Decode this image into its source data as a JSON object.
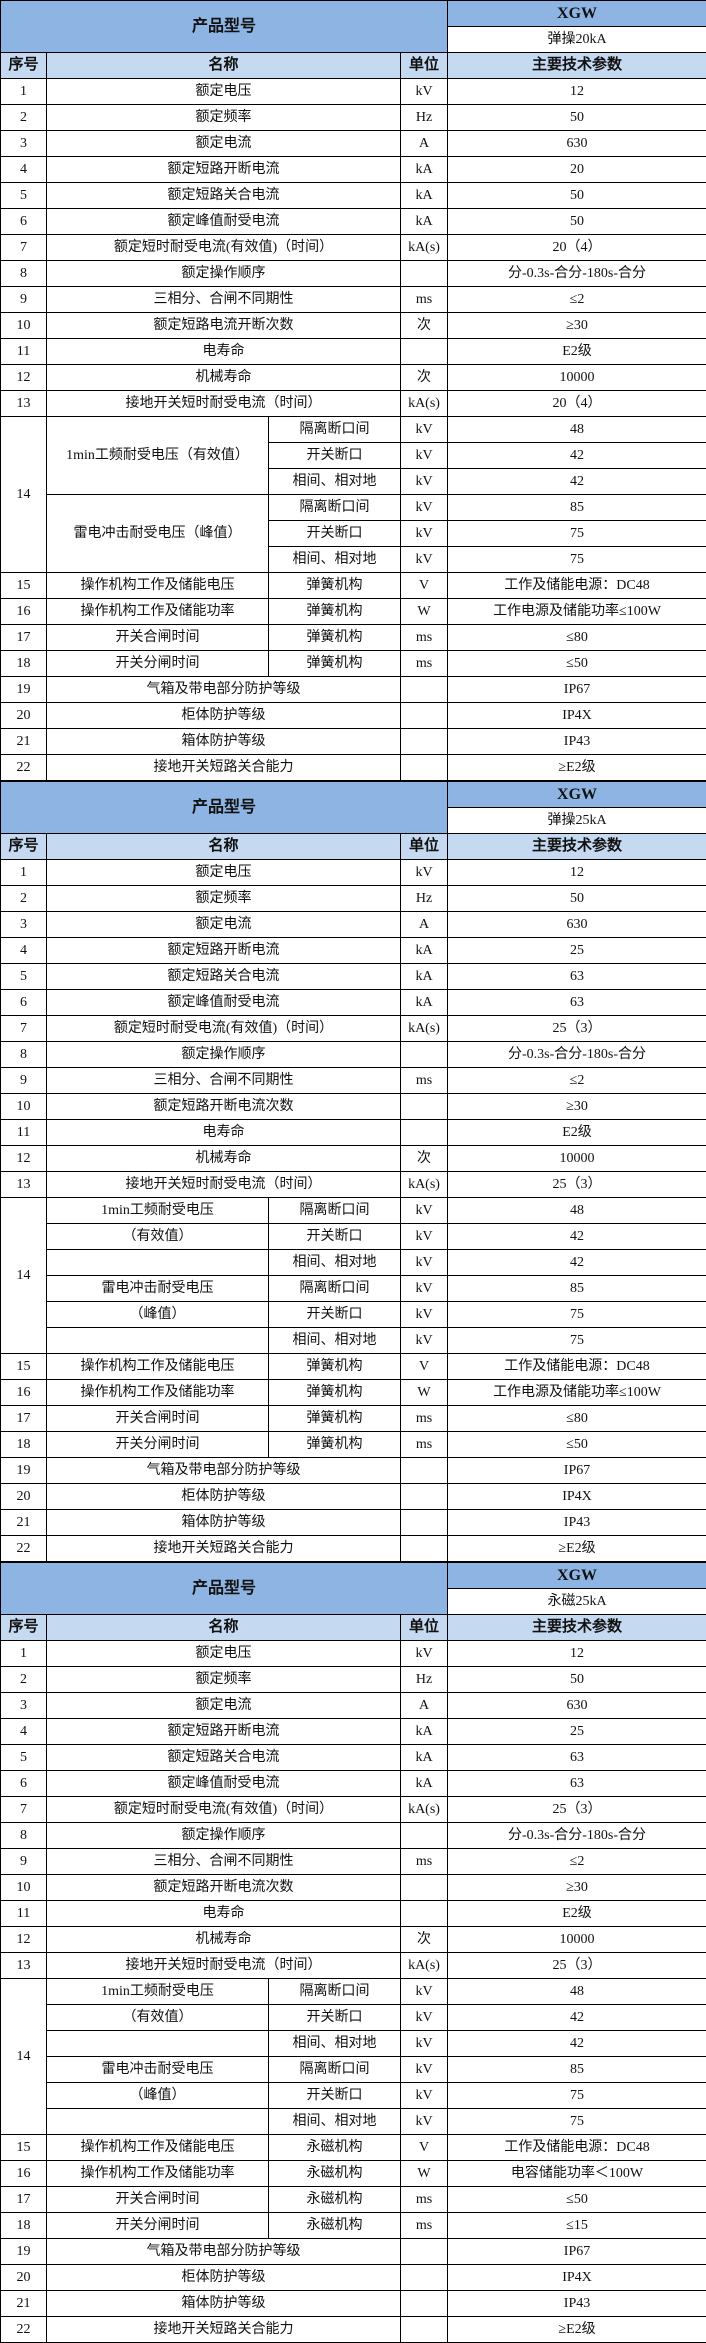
{
  "colors": {
    "header": "#8db4e2",
    "column_header": "#c5d9f1"
  },
  "tables": [
    {
      "model_label": "产品型号",
      "model": "XGW",
      "variant": "弹操20kA",
      "columns": {
        "no": "序号",
        "name": "名称",
        "unit": "单位",
        "value": "主要技术参数"
      },
      "rows": [
        {
          "no": "1",
          "name": "额定电压",
          "unit": "kV",
          "value": "12"
        },
        {
          "no": "2",
          "name": "额定频率",
          "unit": "Hz",
          "value": "50"
        },
        {
          "no": "3",
          "name": "额定电流",
          "unit": "A",
          "value": "630"
        },
        {
          "no": "4",
          "name": "额定短路开断电流",
          "unit": "kA",
          "value": "20"
        },
        {
          "no": "5",
          "name": "额定短路关合电流",
          "unit": "kA",
          "value": "50"
        },
        {
          "no": "6",
          "name": "额定峰值耐受电流",
          "unit": "kA",
          "value": "50"
        },
        {
          "no": "7",
          "name": "额定短时耐受电流(有效值)（时间）",
          "unit": "kA(s)",
          "value": "20（4）"
        },
        {
          "no": "8",
          "name": "额定操作顺序",
          "unit": "",
          "value": "分-0.3s-合分-180s-合分"
        },
        {
          "no": "9",
          "name": "三相分、合闸不同期性",
          "unit": "ms",
          "value": "≤2"
        },
        {
          "no": "10",
          "name": "额定短路电流开断次数",
          "unit": "次",
          "value": "≥30"
        },
        {
          "no": "11",
          "name": "电寿命",
          "unit": "",
          "value": "E2级"
        },
        {
          "no": "12",
          "name": "机械寿命",
          "unit": "次",
          "value": "10000"
        },
        {
          "no": "13",
          "name": "接地开关短时耐受电流（时间）",
          "unit": "kA(s)",
          "value": "20（4）"
        }
      ],
      "group": {
        "no": "14",
        "labels": [
          "1min工频耐受电压（有效值）",
          "雷电冲击耐受电压（峰值）"
        ],
        "rows": [
          {
            "sub": "隔离断口间",
            "unit": "kV",
            "value": "48"
          },
          {
            "sub": "开关断口",
            "unit": "kV",
            "value": "42"
          },
          {
            "sub": "相间、相对地",
            "unit": "kV",
            "value": "42"
          },
          {
            "sub": "隔离断口间",
            "unit": "kV",
            "value": "85"
          },
          {
            "sub": "开关断口",
            "unit": "kV",
            "value": "75"
          },
          {
            "sub": "相间、相对地",
            "unit": "kV",
            "value": "75"
          }
        ]
      },
      "mech_rows": [
        {
          "no": "15",
          "name": "操作机构工作及储能电压",
          "sub": "弹簧机构",
          "unit": "V",
          "value": "工作及储能电源：DC48"
        },
        {
          "no": "16",
          "name": "操作机构工作及储能功率",
          "sub": "弹簧机构",
          "unit": "W",
          "value": "工作电源及储能功率≤100W"
        },
        {
          "no": "17",
          "name": "开关合闸时间",
          "sub": "弹簧机构",
          "unit": "ms",
          "value": "≤80"
        },
        {
          "no": "18",
          "name": "开关分闸时间",
          "sub": "弹簧机构",
          "unit": "ms",
          "value": "≤50"
        }
      ],
      "tail_rows": [
        {
          "no": "19",
          "name": "气箱及带电部分防护等级",
          "unit": "",
          "value": "IP67"
        },
        {
          "no": "20",
          "name": "柜体防护等级",
          "unit": "",
          "value": "IP4X"
        },
        {
          "no": "21",
          "name": "箱体防护等级",
          "unit": "",
          "value": "IP43"
        },
        {
          "no": "22",
          "name": "接地开关短路关合能力",
          "unit": "",
          "value": "≥E2级"
        }
      ]
    },
    {
      "model_label": "产品型号",
      "model": "XGW",
      "variant": "弹操25kA",
      "columns": {
        "no": "序号",
        "name": "名称",
        "unit": "单位",
        "value": "主要技术参数"
      },
      "rows": [
        {
          "no": "1",
          "name": "额定电压",
          "unit": "kV",
          "value": "12"
        },
        {
          "no": "2",
          "name": "额定频率",
          "unit": "Hz",
          "value": "50"
        },
        {
          "no": "3",
          "name": "额定电流",
          "unit": "A",
          "value": "630"
        },
        {
          "no": "4",
          "name": "额定短路开断电流",
          "unit": "kA",
          "value": "25"
        },
        {
          "no": "5",
          "name": "额定短路关合电流",
          "unit": "kA",
          "value": "63"
        },
        {
          "no": "6",
          "name": "额定峰值耐受电流",
          "unit": "kA",
          "value": "63"
        },
        {
          "no": "7",
          "name": "额定短时耐受电流(有效值)（时间）",
          "unit": "kA(s)",
          "value": "25（3）"
        },
        {
          "no": "8",
          "name": "额定操作顺序",
          "unit": "",
          "value": "分-0.3s-合分-180s-合分"
        },
        {
          "no": "9",
          "name": "三相分、合闸不同期性",
          "unit": "ms",
          "value": "≤2"
        },
        {
          "no": "10",
          "name": "额定短路开断电流次数",
          "unit": "",
          "value": "≥30"
        },
        {
          "no": "11",
          "name": "电寿命",
          "unit": "",
          "value": "E2级"
        },
        {
          "no": "12",
          "name": "机械寿命",
          "unit": "次",
          "value": "10000"
        },
        {
          "no": "13",
          "name": "接地开关短时耐受电流（时间）",
          "unit": "kA(s)",
          "value": "25（3）"
        }
      ],
      "group": {
        "no": "14",
        "labels": [
          "1min工频耐受电压",
          "（有效值）",
          "",
          "雷电冲击耐受电压",
          "（峰值）",
          ""
        ],
        "rows": [
          {
            "sub": "隔离断口间",
            "unit": "kV",
            "value": "48"
          },
          {
            "sub": "开关断口",
            "unit": "kV",
            "value": "42"
          },
          {
            "sub": "相间、相对地",
            "unit": "kV",
            "value": "42"
          },
          {
            "sub": "隔离断口间",
            "unit": "kV",
            "value": "85"
          },
          {
            "sub": "开关断口",
            "unit": "kV",
            "value": "75"
          },
          {
            "sub": "相间、相对地",
            "unit": "kV",
            "value": "75"
          }
        ]
      },
      "mech_rows": [
        {
          "no": "15",
          "name": "操作机构工作及储能电压",
          "sub": "弹簧机构",
          "unit": "V",
          "value": "工作及储能电源：DC48"
        },
        {
          "no": "16",
          "name": "操作机构工作及储能功率",
          "sub": "弹簧机构",
          "unit": "W",
          "value": "工作电源及储能功率≤100W"
        },
        {
          "no": "17",
          "name": "开关合闸时间",
          "sub": "弹簧机构",
          "unit": "ms",
          "value": "≤80"
        },
        {
          "no": "18",
          "name": "开关分闸时间",
          "sub": "弹簧机构",
          "unit": "ms",
          "value": "≤50"
        }
      ],
      "tail_rows": [
        {
          "no": "19",
          "name": "气箱及带电部分防护等级",
          "unit": "",
          "value": "IP67"
        },
        {
          "no": "20",
          "name": "柜体防护等级",
          "unit": "",
          "value": "IP4X"
        },
        {
          "no": "21",
          "name": "箱体防护等级",
          "unit": "",
          "value": "IP43"
        },
        {
          "no": "22",
          "name": "接地开关短路关合能力",
          "unit": "",
          "value": "≥E2级"
        }
      ]
    },
    {
      "model_label": "产品型号",
      "model": "XGW",
      "variant": "永磁25kA",
      "columns": {
        "no": "序号",
        "name": "名称",
        "unit": "单位",
        "value": "主要技术参数"
      },
      "rows": [
        {
          "no": "1",
          "name": "额定电压",
          "unit": "kV",
          "value": "12"
        },
        {
          "no": "2",
          "name": "额定频率",
          "unit": "Hz",
          "value": "50"
        },
        {
          "no": "3",
          "name": "额定电流",
          "unit": "A",
          "value": "630"
        },
        {
          "no": "4",
          "name": "额定短路开断电流",
          "unit": "kA",
          "value": "25"
        },
        {
          "no": "5",
          "name": "额定短路关合电流",
          "unit": "kA",
          "value": "63"
        },
        {
          "no": "6",
          "name": "额定峰值耐受电流",
          "unit": "kA",
          "value": "63"
        },
        {
          "no": "7",
          "name": "额定短时耐受电流(有效值)（时间）",
          "unit": "kA(s)",
          "value": "25（3）"
        },
        {
          "no": "8",
          "name": "额定操作顺序",
          "unit": "",
          "value": "分-0.3s-合分-180s-合分"
        },
        {
          "no": "9",
          "name": "三相分、合闸不同期性",
          "unit": "ms",
          "value": "≤2"
        },
        {
          "no": "10",
          "name": "额定短路开断电流次数",
          "unit": "",
          "value": "≥30"
        },
        {
          "no": "11",
          "name": "电寿命",
          "unit": "",
          "value": "E2级"
        },
        {
          "no": "12",
          "name": "机械寿命",
          "unit": "次",
          "value": "10000"
        },
        {
          "no": "13",
          "name": "接地开关短时耐受电流（时间）",
          "unit": "kA(s)",
          "value": "25（3）"
        }
      ],
      "group": {
        "no": "14",
        "labels": [
          "1min工频耐受电压",
          "（有效值）",
          "",
          "雷电冲击耐受电压",
          "（峰值）",
          ""
        ],
        "rows": [
          {
            "sub": "隔离断口间",
            "unit": "kV",
            "value": "48"
          },
          {
            "sub": "开关断口",
            "unit": "kV",
            "value": "42"
          },
          {
            "sub": "相间、相对地",
            "unit": "kV",
            "value": "42"
          },
          {
            "sub": "隔离断口间",
            "unit": "kV",
            "value": "85"
          },
          {
            "sub": "开关断口",
            "unit": "kV",
            "value": "75"
          },
          {
            "sub": "相间、相对地",
            "unit": "kV",
            "value": "75"
          }
        ]
      },
      "mech_rows": [
        {
          "no": "15",
          "name": "操作机构工作及储能电压",
          "sub": "永磁机构",
          "unit": "V",
          "value": "工作及储能电源：DC48"
        },
        {
          "no": "16",
          "name": "操作机构工作及储能功率",
          "sub": "永磁机构",
          "unit": "W",
          "value": "电容储能功率＜100W"
        },
        {
          "no": "17",
          "name": "开关合闸时间",
          "sub": "永磁机构",
          "unit": "ms",
          "value": "≤50"
        },
        {
          "no": "18",
          "name": "开关分闸时间",
          "sub": "永磁机构",
          "unit": "ms",
          "value": "≤15"
        }
      ],
      "tail_rows": [
        {
          "no": "19",
          "name": "气箱及带电部分防护等级",
          "unit": "",
          "value": "IP67"
        },
        {
          "no": "20",
          "name": "柜体防护等级",
          "unit": "",
          "value": "IP4X"
        },
        {
          "no": "21",
          "name": "箱体防护等级",
          "unit": "",
          "value": "IP43"
        },
        {
          "no": "22",
          "name": "接地开关短路关合能力",
          "unit": "",
          "value": "≥E2级"
        }
      ]
    }
  ]
}
